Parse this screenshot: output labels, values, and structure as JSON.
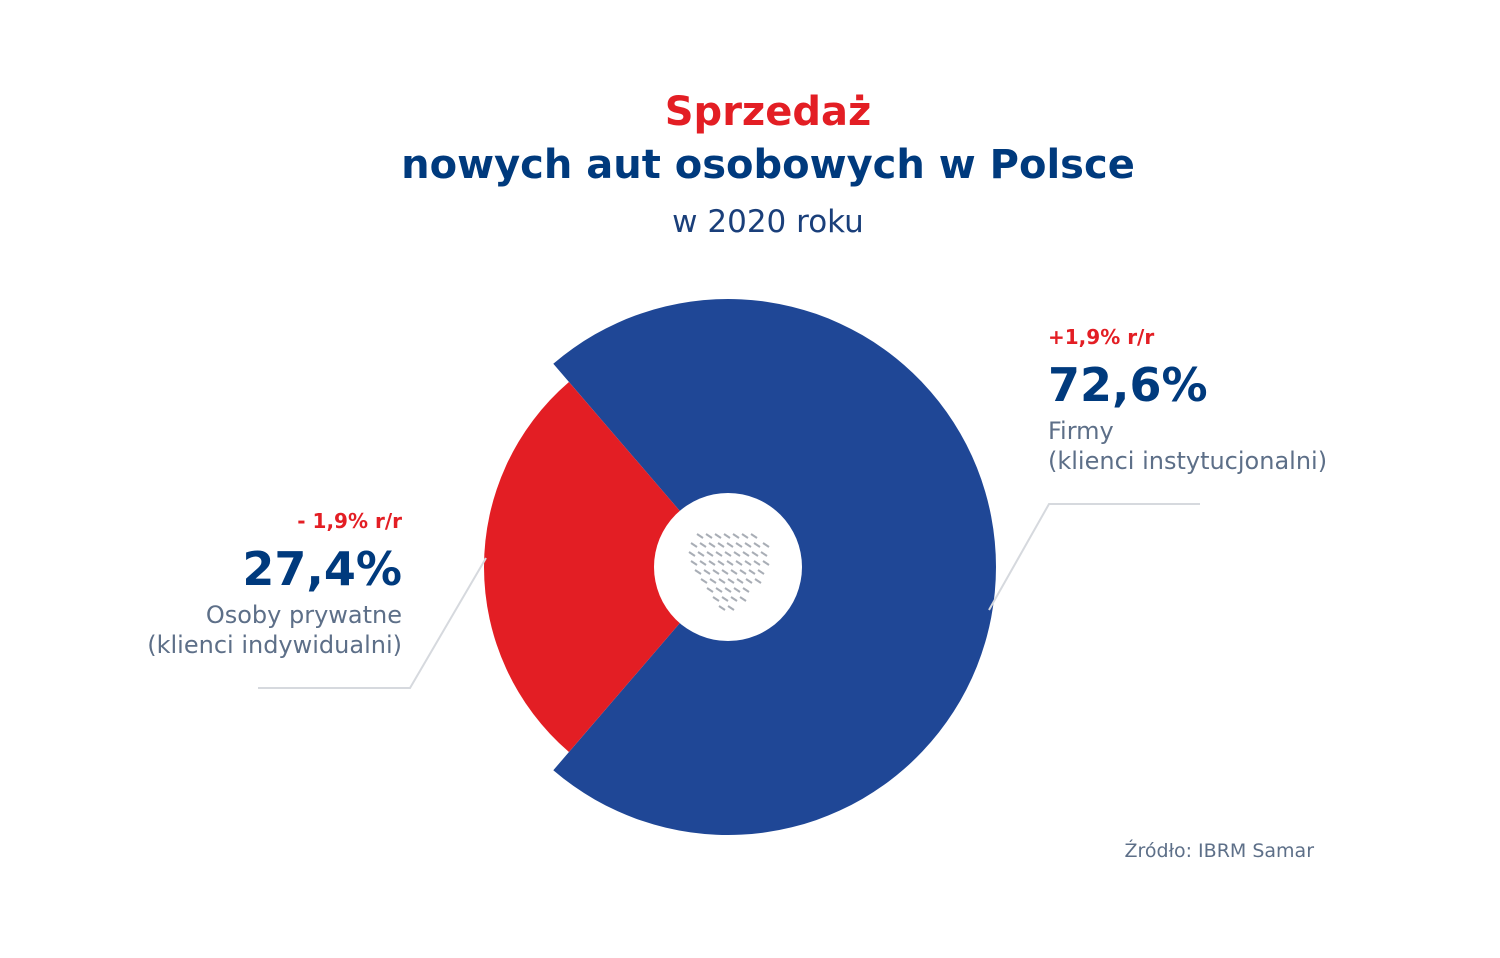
{
  "title": {
    "line1": "Sprzedaż",
    "line2": "nowych aut osobowych w Polsce",
    "subtitle": "w 2020 roku"
  },
  "colors": {
    "red": "#e31e24",
    "navy": "#003a7d",
    "donut_blue": "#1f4796",
    "grey_text": "#5d6f88",
    "leader": "#d6d9de"
  },
  "chart_data": {
    "type": "pie",
    "variant": "donut",
    "title": "Sprzedaż nowych aut osobowych w Polsce",
    "subtitle": "w 2020 roku",
    "series": [
      {
        "name": "Firmy (klienci instytucjonalni)",
        "label": "Firmy",
        "sublabel": "(klienci instytucjonalni)",
        "value": 72.6,
        "display": "72,6%",
        "change": "+1,9% r/r",
        "color": "#1f4796"
      },
      {
        "name": "Osoby prywatne (klienci indywidualni)",
        "label": "Osoby prywatne",
        "sublabel": "(klienci indywidualni)",
        "value": 27.4,
        "display": "27,4%",
        "change": "- 1,9% r/r",
        "color": "#e31e24"
      }
    ]
  },
  "source": "Źródło: IBRM Samar"
}
